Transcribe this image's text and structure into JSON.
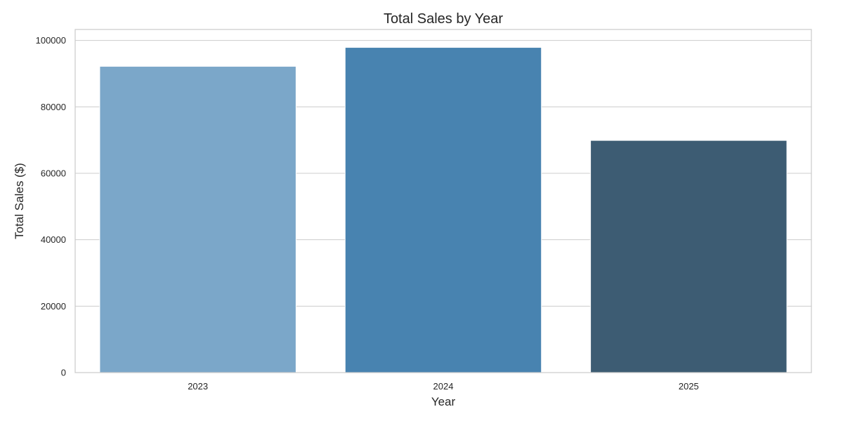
{
  "chart_data": {
    "type": "bar",
    "title": "Total Sales by Year",
    "xlabel": "Year",
    "ylabel": "Total Sales ($)",
    "categories": [
      "2023",
      "2024",
      "2025"
    ],
    "values": [
      92200,
      97900,
      69900
    ],
    "colors": [
      "#7ba7c9",
      "#4883b0",
      "#3d5c73"
    ],
    "ylim": [
      0,
      103300
    ],
    "yticks": [
      0,
      20000,
      40000,
      60000,
      80000,
      100000
    ],
    "ytick_labels": [
      "0",
      "20000",
      "40000",
      "60000",
      "80000",
      "100000"
    ],
    "grid": "horizontal",
    "background": "#ffffff"
  }
}
